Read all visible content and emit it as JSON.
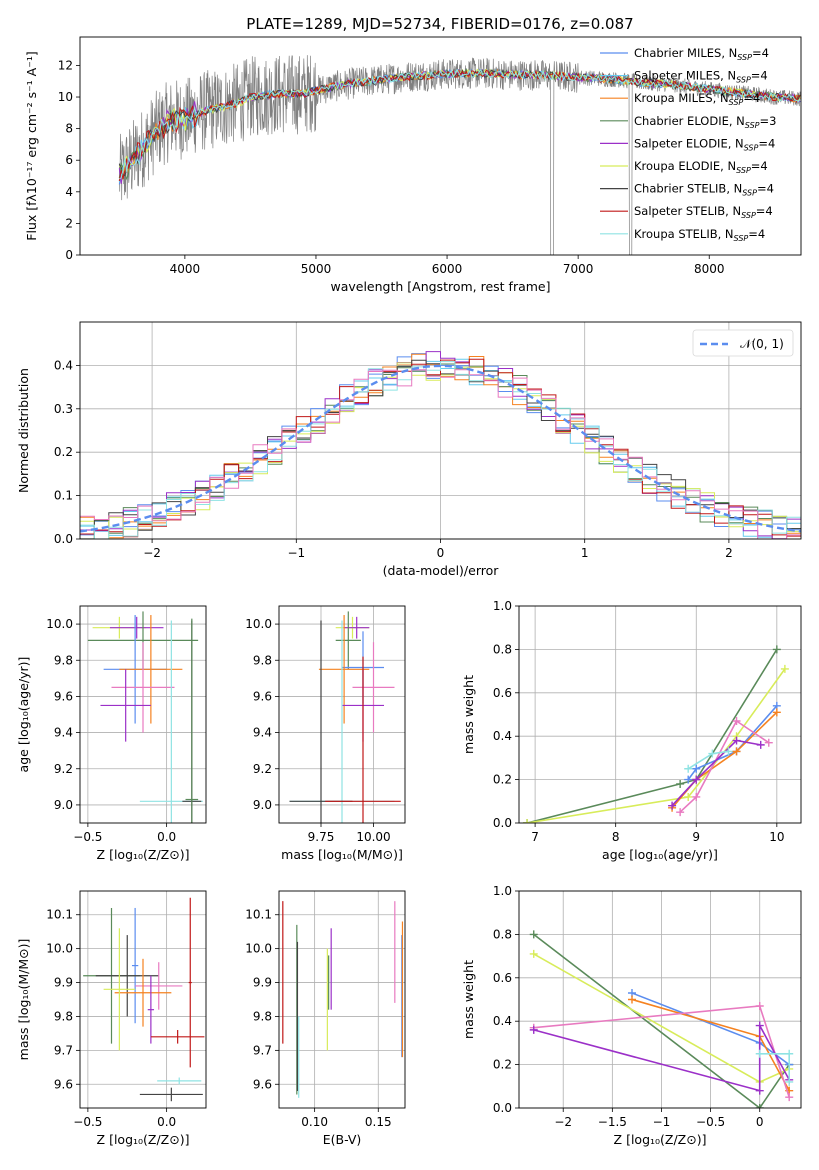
{
  "title": "PLATE=1289, MJD=52734, FIBERID=0176, z=0.087",
  "colors": {
    "Chabrier MILES": "#5b8def",
    "Salpeter MILES": "#66ccee",
    "Kroupa MILES": "#f58220",
    "Chabrier ELODIE": "#5a8a5a",
    "Salpeter ELODIE": "#9b30c8",
    "Kroupa ELODIE": "#d8ec5a",
    "Chabrier STELIB": "#444444",
    "Salpeter STELIB": "#c01818",
    "Kroupa STELIB": "#8fe3e3",
    "pink": "#e87ac0",
    "data": "#808080",
    "normal": "#5b8def"
  },
  "chart_data": [
    {
      "id": "spectrum",
      "type": "line",
      "xlabel": "wavelength [Angstrom, rest frame]",
      "ylabel": "Flux [fλ10⁻¹⁷ erg cm⁻² s⁻¹ A⁻¹]",
      "xlim": [
        3200,
        8700
      ],
      "ylim": [
        0,
        13.8
      ],
      "xticks": [
        4000,
        5000,
        6000,
        7000,
        8000
      ],
      "yticks": [
        0,
        2,
        4,
        6,
        8,
        10,
        12
      ],
      "legend_position": "top-right",
      "legend": [
        {
          "label": "Chabrier MILES, N",
          "sub": "SSP",
          "suffix": "=4",
          "color": "#5b8def"
        },
        {
          "label": "Salpeter MILES, N",
          "sub": "SSP",
          "suffix": "=4",
          "color": "#66ccee"
        },
        {
          "label": "Kroupa MILES, N",
          "sub": "SSP",
          "suffix": "=4",
          "color": "#f58220"
        },
        {
          "label": "Chabrier ELODIE, N",
          "sub": "SSP",
          "suffix": "=3",
          "color": "#5a8a5a"
        },
        {
          "label": "Salpeter ELODIE, N",
          "sub": "SSP",
          "suffix": "=4",
          "color": "#9b30c8"
        },
        {
          "label": "Kroupa ELODIE, N",
          "sub": "SSP",
          "suffix": "=4",
          "color": "#d8ec5a"
        },
        {
          "label": "Chabrier STELIB, N",
          "sub": "SSP",
          "suffix": "=4",
          "color": "#444444"
        },
        {
          "label": "Salpeter STELIB, N",
          "sub": "SSP",
          "suffix": "=4",
          "color": "#c01818"
        },
        {
          "label": "Kroupa STELIB, N",
          "sub": "SSP",
          "suffix": "=4",
          "color": "#8fe3e3"
        }
      ],
      "data_range": [
        3500,
        8700
      ],
      "model_points": [
        [
          3500,
          5.0
        ],
        [
          3600,
          6.0
        ],
        [
          3700,
          7.0
        ],
        [
          3800,
          8.0
        ],
        [
          3900,
          8.6
        ],
        [
          4000,
          8.6
        ],
        [
          4100,
          9.0
        ],
        [
          4200,
          9.2
        ],
        [
          4300,
          9.4
        ],
        [
          4400,
          9.6
        ],
        [
          4500,
          10.0
        ],
        [
          4700,
          10.2
        ],
        [
          4900,
          10.2
        ],
        [
          5100,
          10.6
        ],
        [
          5300,
          10.9
        ],
        [
          5500,
          11.1
        ],
        [
          5700,
          11.3
        ],
        [
          5900,
          11.4
        ],
        [
          6100,
          11.5
        ],
        [
          6300,
          11.5
        ],
        [
          6500,
          11.4
        ],
        [
          6700,
          11.4
        ],
        [
          6900,
          11.3
        ],
        [
          7100,
          11.2
        ],
        [
          7300,
          11.1
        ],
        [
          7500,
          10.9
        ],
        [
          7700,
          10.8
        ],
        [
          7900,
          10.6
        ],
        [
          8100,
          10.4
        ],
        [
          8300,
          10.2
        ],
        [
          8500,
          10.0
        ],
        [
          8700,
          9.9
        ]
      ]
    },
    {
      "id": "residuals",
      "type": "line",
      "xlabel": "(data-model)/error",
      "ylabel": "Normed distribution",
      "xlim": [
        -2.5,
        2.5
      ],
      "ylim": [
        0,
        0.5
      ],
      "xticks": [
        -2,
        -1,
        0,
        1,
        2
      ],
      "yticks": [
        0.0,
        0.1,
        0.2,
        0.3,
        0.4
      ],
      "legend_position": "top-right",
      "legend_label": "𝒩(0, 1)",
      "normal": {
        "mean": 0,
        "sigma": 1
      }
    },
    {
      "id": "age-vs-Z",
      "type": "scatter",
      "xlabel": "Z [log₁₀(Z/Z⊙)]",
      "ylabel": "age  [log₁₀(age/yr)]",
      "xlim": [
        -0.55,
        0.25
      ],
      "ylim": [
        8.9,
        10.1
      ],
      "xticks": [
        -0.5,
        0.0
      ],
      "yticks": [
        9.0,
        9.2,
        9.4,
        9.6,
        9.8,
        10.0
      ],
      "points": [
        {
          "x": -0.3,
          "y": 9.98,
          "xerr": 0.17,
          "yerr": 0.06,
          "color": "#d8ec5a"
        },
        {
          "x": -0.19,
          "y": 9.98,
          "xerr": 0.17,
          "yerr": 0.06,
          "color": "#9b30c8"
        },
        {
          "x": -0.15,
          "y": 9.91,
          "xerr": 0.35,
          "yerr": 0.16,
          "color": "#5a8a5a"
        },
        {
          "x": -0.2,
          "y": 9.75,
          "xerr": 0.2,
          "yerr": 0.3,
          "color": "#5b8def"
        },
        {
          "x": -0.1,
          "y": 9.75,
          "xerr": 0.2,
          "yerr": 0.3,
          "color": "#f58220"
        },
        {
          "x": -0.15,
          "y": 9.65,
          "xerr": 0.2,
          "yerr": 0.25,
          "color": "#e87ac0"
        },
        {
          "x": -0.26,
          "y": 9.55,
          "xerr": 0.16,
          "yerr": 0.2,
          "color": "#9b30c8"
        },
        {
          "x": 0.03,
          "y": 9.02,
          "xerr": 0.2,
          "yerr": 1.0,
          "color": "#8fe3e3"
        },
        {
          "x": 0.16,
          "y": 9.02,
          "xerr": 0.06,
          "yerr": 1.0,
          "color": "#444444"
        },
        {
          "x": 0.16,
          "y": 9.03,
          "xerr": 0.04,
          "yerr": 1.0,
          "color": "#5a8a5a"
        }
      ]
    },
    {
      "id": "age-vs-mass",
      "type": "scatter",
      "xlabel": "mass [log₁₀(M/M⊙)]",
      "ylabel": "",
      "xlim": [
        9.55,
        10.15
      ],
      "ylim": [
        8.9,
        10.1
      ],
      "xticks": [
        9.75,
        10.0
      ],
      "yticks": [
        9.0,
        9.2,
        9.4,
        9.6,
        9.8,
        10.0
      ],
      "points": [
        {
          "x": 9.9,
          "y": 9.98,
          "xerr": 0.08,
          "yerr": 0.06,
          "color": "#d8ec5a"
        },
        {
          "x": 9.92,
          "y": 9.98,
          "xerr": 0.06,
          "yerr": 0.06,
          "color": "#9b30c8"
        },
        {
          "x": 9.88,
          "y": 9.91,
          "xerr": 0.06,
          "yerr": 0.16,
          "color": "#5a8a5a"
        },
        {
          "x": 9.95,
          "y": 9.76,
          "xerr": 0.1,
          "yerr": 0.2,
          "color": "#5b8def"
        },
        {
          "x": 9.86,
          "y": 9.75,
          "xerr": 0.12,
          "yerr": 0.3,
          "color": "#f58220"
        },
        {
          "x": 10.0,
          "y": 9.65,
          "xerr": 0.1,
          "yerr": 0.25,
          "color": "#e87ac0"
        },
        {
          "x": 9.95,
          "y": 9.55,
          "xerr": 0.1,
          "yerr": 0.2,
          "color": "#9b30c8"
        },
        {
          "x": 9.85,
          "y": 9.02,
          "xerr": 0.25,
          "yerr": 1.0,
          "color": "#8fe3e3"
        },
        {
          "x": 9.75,
          "y": 9.02,
          "xerr": 0.15,
          "yerr": 1.0,
          "color": "#444444"
        },
        {
          "x": 9.95,
          "y": 9.02,
          "xerr": 0.18,
          "yerr": 0.8,
          "color": "#c01818"
        }
      ]
    },
    {
      "id": "massweight-vs-age",
      "type": "line",
      "xlabel": "age  [log₁₀(age/yr)]",
      "ylabel": "mass weight",
      "xlim": [
        6.8,
        10.3
      ],
      "ylim": [
        0.0,
        1.0
      ],
      "xticks": [
        7,
        8,
        9,
        10
      ],
      "yticks": [
        0.0,
        0.2,
        0.4,
        0.6,
        0.8,
        1.0
      ],
      "series": [
        {
          "color": "#5a8a5a",
          "points": [
            [
              6.9,
              0.0
            ],
            [
              8.8,
              0.18
            ],
            [
              9.0,
              0.2
            ],
            [
              10.0,
              0.8
            ]
          ]
        },
        {
          "color": "#d8ec5a",
          "points": [
            [
              6.9,
              0.0
            ],
            [
              8.9,
              0.12
            ],
            [
              9.5,
              0.4
            ],
            [
              10.1,
              0.71
            ]
          ]
        },
        {
          "color": "#5b8def",
          "points": [
            [
              8.9,
              0.2
            ],
            [
              9.0,
              0.25
            ],
            [
              9.5,
              0.33
            ],
            [
              10.0,
              0.54
            ]
          ]
        },
        {
          "color": "#f58220",
          "points": [
            [
              8.7,
              0.07
            ],
            [
              9.0,
              0.2
            ],
            [
              9.5,
              0.33
            ],
            [
              10.0,
              0.51
            ]
          ]
        },
        {
          "color": "#e87ac0",
          "points": [
            [
              8.8,
              0.05
            ],
            [
              9.0,
              0.12
            ],
            [
              9.5,
              0.47
            ],
            [
              9.9,
              0.37
            ]
          ]
        },
        {
          "color": "#9b30c8",
          "points": [
            [
              8.7,
              0.08
            ],
            [
              9.0,
              0.2
            ],
            [
              9.5,
              0.38
            ],
            [
              9.8,
              0.36
            ]
          ]
        },
        {
          "color": "#8fe3e3",
          "points": [
            [
              8.9,
              0.25
            ],
            [
              9.2,
              0.32
            ],
            [
              9.4,
              0.33
            ]
          ]
        }
      ]
    },
    {
      "id": "mass-vs-Z",
      "type": "scatter",
      "xlabel": "Z [log₁₀(Z/Z⊙)]",
      "ylabel": "mass [log₁₀(M/M⊙)]",
      "xlim": [
        -0.55,
        0.25
      ],
      "ylim": [
        9.53,
        10.17
      ],
      "xticks": [
        -0.5,
        0.0
      ],
      "yticks": [
        9.6,
        9.7,
        9.8,
        9.9,
        10.0,
        10.1
      ],
      "points": [
        {
          "x": -0.2,
          "y": 9.95,
          "xerr": 0.02,
          "yerr": 0.17,
          "color": "#5b8def"
        },
        {
          "x": -0.35,
          "y": 9.92,
          "xerr": 0.18,
          "yerr": 0.2,
          "color": "#5a8a5a"
        },
        {
          "x": -0.25,
          "y": 9.92,
          "xerr": 0.2,
          "yerr": 0.12,
          "color": "#444444"
        },
        {
          "x": -0.05,
          "y": 9.89,
          "xerr": 0.15,
          "yerr": 0.07,
          "color": "#e87ac0"
        },
        {
          "x": -0.15,
          "y": 9.87,
          "xerr": 0.18,
          "yerr": 0.1,
          "color": "#f58220"
        },
        {
          "x": -0.3,
          "y": 9.88,
          "xerr": 0.1,
          "yerr": 0.18,
          "color": "#d8ec5a"
        },
        {
          "x": -0.1,
          "y": 9.82,
          "xerr": 0.02,
          "yerr": 0.1,
          "color": "#9b30c8"
        },
        {
          "x": 0.07,
          "y": 9.74,
          "xerr": 0.17,
          "yerr": 0.02,
          "color": "#c01818"
        },
        {
          "x": 0.08,
          "y": 9.61,
          "xerr": 0.14,
          "yerr": 0.01,
          "color": "#8fe3e3"
        },
        {
          "x": 0.03,
          "y": 9.57,
          "xerr": 0.2,
          "yerr": 0.02,
          "color": "#444444"
        },
        {
          "x": 0.15,
          "y": 9.9,
          "xerr": 0.01,
          "yerr": 0.25,
          "color": "#c01818"
        }
      ]
    },
    {
      "id": "mass-vs-EBV",
      "type": "scatter",
      "xlabel": "E(B-V)",
      "ylabel": "",
      "xlim": [
        0.072,
        0.171
      ],
      "ylim": [
        9.53,
        10.17
      ],
      "xticks": [
        0.1,
        0.15
      ],
      "yticks": [
        9.6,
        9.7,
        9.8,
        9.9,
        10.0,
        10.1
      ],
      "points": [
        {
          "x": 0.075,
          "y": 9.93,
          "yerr": 0.21,
          "color": "#c01818"
        },
        {
          "x": 0.086,
          "y": 9.82,
          "yerr": 0.25,
          "color": "#5a8a5a"
        },
        {
          "x": 0.0865,
          "y": 9.8,
          "yerr": 0.22,
          "color": "#444444"
        },
        {
          "x": 0.0875,
          "y": 9.68,
          "yerr": 0.12,
          "color": "#8fe3e3"
        },
        {
          "x": 0.11,
          "y": 9.85,
          "yerr": 0.15,
          "color": "#d8ec5a"
        },
        {
          "x": 0.111,
          "y": 9.9,
          "yerr": 0.08,
          "color": "#5a8a5a"
        },
        {
          "x": 0.113,
          "y": 9.94,
          "yerr": 0.12,
          "color": "#9b30c8"
        },
        {
          "x": 0.163,
          "y": 9.99,
          "yerr": 0.15,
          "color": "#e87ac0"
        },
        {
          "x": 0.1685,
          "y": 9.86,
          "yerr": 0.18,
          "color": "#5b8def"
        },
        {
          "x": 0.169,
          "y": 9.88,
          "yerr": 0.2,
          "color": "#f58220"
        }
      ]
    },
    {
      "id": "massweight-vs-Z",
      "type": "line",
      "xlabel": "Z [log₁₀(Z/Z⊙)]",
      "ylabel": "mass weight",
      "xlim": [
        -2.45,
        0.42
      ],
      "ylim": [
        0.0,
        1.0
      ],
      "xticks": [
        -2.0,
        -1.5,
        -1.0,
        -0.5,
        0.0
      ],
      "yticks": [
        0.0,
        0.2,
        0.4,
        0.6,
        0.8,
        1.0
      ],
      "series": [
        {
          "color": "#5a8a5a",
          "points": [
            [
              -2.3,
              0.8
            ],
            [
              0.0,
              0.0
            ],
            [
              0.3,
              0.2
            ]
          ]
        },
        {
          "color": "#d8ec5a",
          "points": [
            [
              -2.3,
              0.71
            ],
            [
              0.0,
              0.12
            ],
            [
              0.3,
              0.18
            ]
          ]
        },
        {
          "color": "#5b8def",
          "points": [
            [
              -1.3,
              0.53
            ],
            [
              0.0,
              0.3
            ],
            [
              0.3,
              0.2
            ]
          ]
        },
        {
          "color": "#f58220",
          "points": [
            [
              -1.3,
              0.5
            ],
            [
              0.0,
              0.33
            ],
            [
              0.3,
              0.08
            ]
          ]
        },
        {
          "color": "#e87ac0",
          "points": [
            [
              -2.3,
              0.37
            ],
            [
              0.0,
              0.47
            ],
            [
              0.3,
              0.05
            ]
          ]
        },
        {
          "color": "#9b30c8",
          "points": [
            [
              -2.3,
              0.36
            ],
            [
              0.0,
              0.08
            ],
            [
              0.0,
              0.38
            ],
            [
              0.3,
              0.13
            ]
          ]
        },
        {
          "color": "#8fe3e3",
          "points": [
            [
              0.0,
              0.25
            ],
            [
              0.3,
              0.25
            ],
            [
              0.3,
              0.12
            ]
          ]
        }
      ]
    }
  ]
}
